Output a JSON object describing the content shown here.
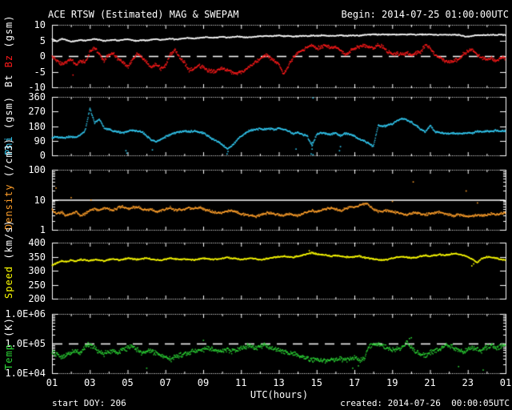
{
  "header": {
    "title": "ACE RTSW (Estimated) MAG & SWEPAM",
    "begin": "Begin: 2014-07-25 01:00:00UTC"
  },
  "footer": {
    "utc_label": "UTC(hours)",
    "start_doy": "start DOY: 206",
    "created": "created: 2014-07-26  00:00:05UTC"
  },
  "colors": {
    "background": "#000000",
    "axis": "#ffffff",
    "bt": "#ffffff",
    "bz": "#ff1a1a",
    "phi": "#33ccf5",
    "density": "#ff9f2a",
    "speed": "#ffff00",
    "temp": "#2bd435"
  },
  "x_axis": {
    "label": "UTC(hours)",
    "range": [
      1,
      25
    ],
    "ticks": [
      {
        "h": 1,
        "label": "01"
      },
      {
        "h": 3,
        "label": "03"
      },
      {
        "h": 5,
        "label": "05"
      },
      {
        "h": 7,
        "label": "07"
      },
      {
        "h": 9,
        "label": "09"
      },
      {
        "h": 11,
        "label": "11"
      },
      {
        "h": 13,
        "label": "13"
      },
      {
        "h": 15,
        "label": "15"
      },
      {
        "h": 17,
        "label": "17"
      },
      {
        "h": 19,
        "label": "19"
      },
      {
        "h": 21,
        "label": "21"
      },
      {
        "h": 23,
        "label": "23"
      },
      {
        "h": 25,
        "label": "01"
      }
    ]
  },
  "chart_data": [
    {
      "name": "bt-bz",
      "type": "scatter",
      "scale": "linear",
      "ylim": [
        -10,
        10
      ],
      "ylabel_parts": [
        {
          "text": "Bt ",
          "color": "#ffffff"
        },
        {
          "text": "Bz",
          "color": "#ff1a1a"
        },
        {
          "text": " (gsm)",
          "color": "#ffffff"
        }
      ],
      "yticks": [
        {
          "v": 10,
          "label": "10"
        },
        {
          "v": 5,
          "label": "5"
        },
        {
          "v": 0,
          "label": "0"
        },
        {
          "v": -5,
          "label": "-5"
        },
        {
          "v": -10,
          "label": "-10"
        }
      ],
      "reflines": [
        {
          "v": 0,
          "style": "dashed"
        }
      ],
      "series": [
        {
          "name": "Bt",
          "color": "#ffffff",
          "jitter": 0.2,
          "x_start": 1,
          "x_step": 0.25,
          "values": [
            5.5,
            4.8,
            5.6,
            5.2,
            4.6,
            4.9,
            5.2,
            5.0,
            5.3,
            5.5,
            5.2,
            4.9,
            5.1,
            5.3,
            5.0,
            5.2,
            5.4,
            5.1,
            4.9,
            5.2,
            5.0,
            5.3,
            5.5,
            5.2,
            5.4,
            5.6,
            5.3,
            5.5,
            5.7,
            5.9,
            5.6,
            5.8,
            6.0,
            6.1,
            5.9,
            6.0,
            6.2,
            6.0,
            6.1,
            6.3,
            6.2,
            6.0,
            6.1,
            6.2,
            6.4,
            6.5,
            6.4,
            6.5,
            6.6,
            6.4,
            6.5,
            6.3,
            6.4,
            6.5,
            6.4,
            6.6,
            6.5,
            6.7,
            6.6,
            6.5,
            6.6,
            6.7,
            6.5,
            6.6,
            6.7,
            6.6,
            6.8,
            6.9,
            7.0,
            6.9,
            7.0,
            6.9,
            7.0,
            6.9,
            7.0,
            6.9,
            7.0,
            6.9,
            7.0,
            6.9,
            7.0,
            6.9,
            6.8,
            6.9,
            6.8,
            6.9,
            6.8,
            6.5,
            6.2,
            6.6,
            6.8,
            6.7,
            6.8,
            6.9,
            6.8,
            6.9,
            6.8
          ],
          "outliers": []
        },
        {
          "name": "Bz",
          "color": "#ff1a1a",
          "jitter": 0.7,
          "x_start": 1,
          "x_step": 0.25,
          "values": [
            0.0,
            -1.5,
            -2.5,
            -2.0,
            -1.0,
            -2.5,
            -1.5,
            -2.0,
            1.5,
            2.5,
            0.5,
            -1.5,
            0.5,
            1.0,
            -1.0,
            -2.0,
            -3.5,
            -1.0,
            1.0,
            -0.5,
            -2.0,
            -3.5,
            -2.5,
            -4.0,
            -3.0,
            0.5,
            2.0,
            -0.5,
            -2.0,
            -4.5,
            -4.0,
            -3.0,
            -3.5,
            -4.5,
            -5.0,
            -4.5,
            -4.0,
            -4.5,
            -5.0,
            -5.5,
            -5.0,
            -4.5,
            -3.0,
            -2.0,
            -1.0,
            0.5,
            -0.5,
            -1.5,
            -2.5,
            -6.0,
            -3.0,
            -0.5,
            1.0,
            2.0,
            3.0,
            3.5,
            2.5,
            3.0,
            3.5,
            2.5,
            3.0,
            2.0,
            0.5,
            1.5,
            2.5,
            3.0,
            3.5,
            3.0,
            2.5,
            3.5,
            3.0,
            1.5,
            0.5,
            1.0,
            0.5,
            1.0,
            0.5,
            1.0,
            1.5,
            3.5,
            2.5,
            0.5,
            -0.5,
            -1.5,
            -2.0,
            -1.5,
            -1.0,
            0.5,
            1.5,
            2.0,
            0.5,
            -0.5,
            -1.0,
            -0.5,
            -1.5,
            -0.5,
            -0.5
          ],
          "outliers": [
            [
              2.1,
              -6.0
            ]
          ]
        }
      ]
    },
    {
      "name": "phi",
      "type": "scatter",
      "scale": "linear",
      "ylim": [
        0,
        360
      ],
      "ylabel_parts": [
        {
          "text": "Phi",
          "color": "#33ccf5"
        },
        {
          "text": " (gsm)",
          "color": "#ffffff"
        }
      ],
      "yticks": [
        {
          "v": 360,
          "label": "360"
        },
        {
          "v": 270,
          "label": "270"
        },
        {
          "v": 180,
          "label": "180"
        },
        {
          "v": 90,
          "label": "90"
        },
        {
          "v": 0,
          "label": "0"
        }
      ],
      "reflines": [],
      "series": [
        {
          "name": "Phi",
          "color": "#33ccf5",
          "jitter": 7,
          "x_start": 1,
          "x_step": 0.25,
          "values": [
            110,
            115,
            108,
            112,
            118,
            110,
            125,
            155,
            290,
            200,
            225,
            170,
            160,
            150,
            145,
            140,
            150,
            155,
            150,
            145,
            120,
            95,
            85,
            100,
            115,
            130,
            140,
            145,
            150,
            145,
            150,
            145,
            140,
            120,
            100,
            85,
            70,
            40,
            60,
            90,
            120,
            140,
            155,
            160,
            165,
            160,
            165,
            160,
            165,
            160,
            150,
            135,
            140,
            130,
            120,
            60,
            130,
            140,
            135,
            130,
            140,
            120,
            135,
            130,
            120,
            100,
            90,
            75,
            55,
            185,
            180,
            185,
            195,
            215,
            230,
            220,
            205,
            185,
            160,
            145,
            185,
            145,
            140,
            138,
            135,
            138,
            135,
            138,
            140,
            138,
            150,
            145,
            150,
            148,
            155,
            150,
            152
          ],
          "outliers": [
            [
              4.9,
              30
            ],
            [
              4.95,
              15
            ],
            [
              6.3,
              35
            ],
            [
              10.25,
              10
            ],
            [
              10.3,
              25
            ],
            [
              13.9,
              40
            ],
            [
              14.7,
              10
            ],
            [
              14.75,
              40
            ],
            [
              14.75,
              80
            ],
            [
              14.8,
              5
            ],
            [
              14.8,
              355
            ],
            [
              16.2,
              30
            ],
            [
              16.25,
              55
            ]
          ]
        }
      ]
    },
    {
      "name": "density",
      "type": "scatter",
      "scale": "log",
      "ylim": [
        1,
        100
      ],
      "ylabel_parts": [
        {
          "text": "Density",
          "color": "#ff9f2a"
        },
        {
          "text": " (/cm3)",
          "color": "#ffffff"
        }
      ],
      "yticks": [
        {
          "v": 100,
          "label": "100"
        },
        {
          "v": 10,
          "label": "10"
        },
        {
          "v": 1,
          "label": "1"
        }
      ],
      "reflines": [
        {
          "v": 10,
          "style": "solid"
        }
      ],
      "series": [
        {
          "name": "Density",
          "color": "#ff9f2a",
          "jitter": 0.05,
          "x_start": 1,
          "x_step": 0.25,
          "values": [
            4.5,
            3.5,
            4.0,
            3.0,
            3.5,
            4.0,
            3.0,
            3.5,
            4.5,
            5.0,
            4.5,
            5.5,
            5.0,
            4.5,
            5.5,
            6.0,
            5.0,
            5.5,
            6.0,
            5.0,
            4.5,
            5.0,
            4.0,
            4.5,
            5.0,
            5.5,
            4.5,
            5.0,
            4.5,
            5.5,
            5.0,
            5.5,
            5.0,
            4.5,
            4.0,
            3.5,
            3.8,
            4.2,
            4.5,
            4.0,
            3.5,
            3.2,
            3.0,
            2.8,
            3.2,
            3.5,
            3.8,
            3.5,
            3.2,
            3.0,
            3.5,
            3.2,
            3.0,
            3.5,
            4.0,
            4.5,
            4.0,
            4.5,
            5.0,
            5.5,
            5.0,
            4.5,
            5.0,
            5.5,
            6.0,
            6.5,
            7.5,
            7.0,
            5.0,
            4.0,
            4.2,
            4.5,
            4.0,
            3.8,
            3.5,
            3.2,
            3.5,
            3.8,
            3.5,
            3.2,
            3.5,
            3.8,
            4.0,
            3.5,
            3.2,
            3.0,
            3.2,
            3.0,
            2.8,
            3.0,
            3.2,
            3.0,
            3.2,
            3.5,
            3.2,
            3.5,
            3.8
          ],
          "outliers": [
            [
              1.2,
              25
            ],
            [
              2.0,
              12
            ],
            [
              3.05,
              10
            ],
            [
              19.0,
              9
            ],
            [
              20.1,
              40
            ],
            [
              22.9,
              20
            ],
            [
              23.5,
              8
            ]
          ]
        }
      ]
    },
    {
      "name": "speed",
      "type": "scatter",
      "scale": "linear",
      "ylim": [
        200,
        400
      ],
      "ylabel_parts": [
        {
          "text": "Speed",
          "color": "#ffff00"
        },
        {
          "text": " (km/s)",
          "color": "#ffffff"
        }
      ],
      "yticks": [
        {
          "v": 400,
          "label": "400"
        },
        {
          "v": 350,
          "label": "350"
        },
        {
          "v": 300,
          "label": "300"
        },
        {
          "v": 250,
          "label": "250"
        },
        {
          "v": 200,
          "label": "200"
        }
      ],
      "reflines": [],
      "series": [
        {
          "name": "Speed",
          "color": "#ffff00",
          "jitter": 3,
          "x_start": 1,
          "x_step": 0.25,
          "values": [
            320,
            328,
            335,
            332,
            338,
            335,
            340,
            338,
            336,
            340,
            338,
            335,
            340,
            342,
            338,
            340,
            345,
            342,
            340,
            343,
            345,
            342,
            340,
            338,
            342,
            345,
            343,
            340,
            342,
            340,
            338,
            342,
            345,
            343,
            340,
            342,
            345,
            348,
            345,
            343,
            340,
            342,
            345,
            343,
            340,
            342,
            345,
            348,
            350,
            352,
            350,
            348,
            352,
            355,
            360,
            365,
            360,
            358,
            355,
            352,
            355,
            352,
            350,
            348,
            350,
            352,
            348,
            345,
            342,
            340,
            338,
            340,
            345,
            348,
            350,
            348,
            345,
            348,
            352,
            355,
            352,
            355,
            358,
            355,
            358,
            362,
            360,
            355,
            350,
            340,
            330,
            345,
            350,
            348,
            345,
            340,
            338
          ],
          "outliers": [
            [
              14.6,
              372
            ],
            [
              23.2,
              318
            ],
            [
              23.3,
              325
            ]
          ]
        }
      ]
    },
    {
      "name": "temp",
      "type": "scatter",
      "scale": "log",
      "ylim": [
        10000,
        1000000
      ],
      "ylabel_parts": [
        {
          "text": "Temp",
          "color": "#2bd435"
        },
        {
          "text": " (K)",
          "color": "#ffffff"
        }
      ],
      "yticks": [
        {
          "v": 1000000,
          "label": "1.0E+06"
        },
        {
          "v": 100000,
          "label": "1.0E+05"
        },
        {
          "v": 10000,
          "label": "1.0E+04"
        }
      ],
      "reflines": [
        {
          "v": 100000,
          "style": "dashed"
        }
      ],
      "series": [
        {
          "name": "Temp",
          "color": "#2bd435",
          "jitter": 0.1,
          "x_start": 1,
          "x_step": 0.25,
          "values": [
            50000,
            45000,
            35000,
            40000,
            50000,
            60000,
            50000,
            80000,
            90000,
            70000,
            50000,
            45000,
            55000,
            60000,
            50000,
            65000,
            70000,
            80000,
            60000,
            50000,
            55000,
            60000,
            45000,
            40000,
            35000,
            30000,
            35000,
            40000,
            45000,
            50000,
            55000,
            60000,
            65000,
            70000,
            60000,
            55000,
            60000,
            65000,
            55000,
            60000,
            70000,
            80000,
            90000,
            70000,
            80000,
            90000,
            75000,
            65000,
            60000,
            55000,
            50000,
            45000,
            40000,
            35000,
            30000,
            28000,
            30000,
            28000,
            25000,
            28000,
            30000,
            32000,
            28000,
            30000,
            32000,
            28000,
            30000,
            80000,
            90000,
            100000,
            80000,
            70000,
            60000,
            65000,
            70000,
            120000,
            80000,
            50000,
            45000,
            40000,
            50000,
            60000,
            70000,
            80000,
            90000,
            70000,
            60000,
            50000,
            60000,
            70000,
            65000,
            55000,
            80000,
            90000,
            70000,
            80000,
            90000
          ],
          "outliers": [
            [
              2.9,
              110000
            ],
            [
              6.0,
              15000
            ],
            [
              9.0,
              130000
            ],
            [
              16.9,
              15000
            ],
            [
              17.2,
              18000
            ],
            [
              19.9,
              150000
            ],
            [
              20.0,
              160000
            ],
            [
              22.5,
              17000
            ],
            [
              23.8,
              13000
            ]
          ]
        }
      ]
    }
  ]
}
